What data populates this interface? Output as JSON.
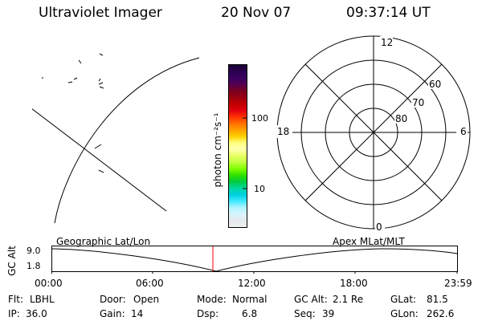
{
  "header": {
    "instrument": "Ultraviolet Imager",
    "date": "20 Nov 07",
    "time": "09:37:14 UT"
  },
  "colorbar": {
    "unit_label": "photon cm⁻²s⁻¹",
    "tick_100": "100",
    "tick_10": "10",
    "colors": [
      "#1a0033",
      "#2a0050",
      "#3a005f",
      "#55004f",
      "#7a0020",
      "#9a0010",
      "#c00000",
      "#e00010",
      "#ff3000",
      "#ff7000",
      "#ffa000",
      "#ffd000",
      "#ffff80",
      "#ffffb0",
      "#e8ff60",
      "#c0ff40",
      "#80ff00",
      "#30e000",
      "#00cc40",
      "#00d8a0",
      "#00d0e0",
      "#40e8ff",
      "#b0f4ff",
      "#d8f4ff",
      "#e4e8ec",
      "#eef0f2"
    ]
  },
  "polar": {
    "label_12": "12",
    "label_6": "6",
    "label_18": "18",
    "label_0": "0",
    "label_60": "60",
    "label_70": "70",
    "label_80": "80"
  },
  "timeline": {
    "left_caption": "Geographic Lat/Lon",
    "right_caption": "Apex MLat/MLT",
    "axis_title": "GC Alt",
    "y_max": "9.0",
    "y_min": "1.8",
    "x_ticks": [
      "00:00",
      "06:00",
      "12:00",
      "18:00",
      "23:59"
    ],
    "current_time_marker_color": "#ff0000"
  },
  "status": {
    "flt_label": "Flt:",
    "flt_value": "LBHL",
    "ip_label": "IP:",
    "ip_value": "36.0",
    "door_label": "Door:",
    "door_value": "Open",
    "gain_label": "Gain:",
    "gain_value": "14",
    "mode_label": "Mode:",
    "mode_value": "Normal",
    "dsp_label": "Dsp:",
    "dsp_value": "6.8",
    "gcalt_label": "GC Alt:",
    "gcalt_value": "2.1 Re",
    "seq_label": "Seq:",
    "seq_value": "39",
    "glat_label": "GLat:",
    "glat_value": "81.5",
    "glon_label": "GLon:",
    "glon_value": "262.6"
  }
}
